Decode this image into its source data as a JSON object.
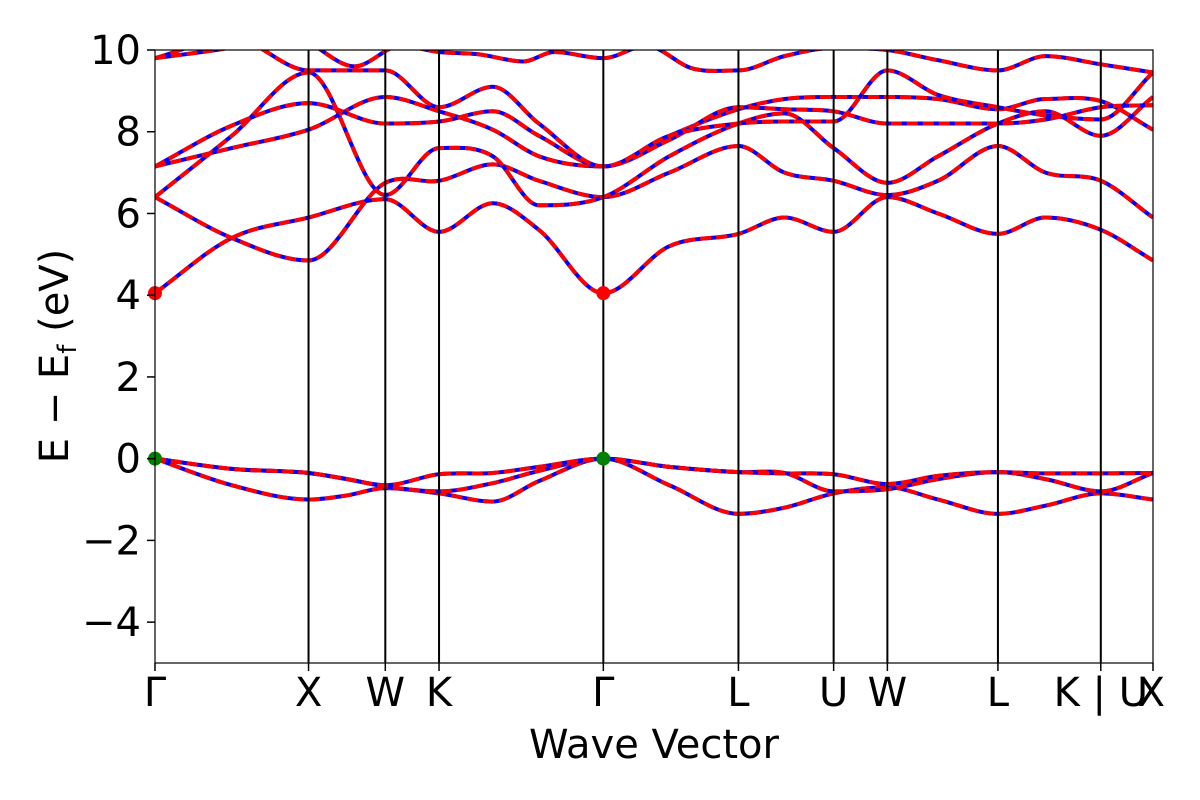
{
  "chart_data": {
    "type": "line",
    "title": "",
    "xlabel": "Wave Vector",
    "ylabel": "E − E",
    "ylabel_sub": "f",
    "ylabel_unit": " (eV)",
    "xlim": [
      0,
      6.5
    ],
    "ylim": [
      -5,
      10
    ],
    "yticks": [
      -4,
      -2,
      0,
      2,
      4,
      6,
      8,
      10
    ],
    "ytick_labels": [
      "−4",
      "−2",
      "0",
      "2",
      "4",
      "6",
      "8",
      "10"
    ],
    "kpoints": [
      {
        "label": "Γ",
        "x": 0.0
      },
      {
        "label": "X",
        "x": 1.0
      },
      {
        "label": "W",
        "x": 1.5
      },
      {
        "label": "K",
        "x": 1.85
      },
      {
        "label": "Γ",
        "x": 2.92
      },
      {
        "label": "L",
        "x": 3.8
      },
      {
        "label": "U",
        "x": 4.42
      },
      {
        "label": "W",
        "x": 4.77
      },
      {
        "label": "L",
        "x": 5.49
      },
      {
        "label": "K | U",
        "x": 6.16
      },
      {
        "label": "X",
        "x": 6.5
      }
    ],
    "line_colors": {
      "primary": "#ff0000",
      "overlay": "#0000ff"
    },
    "marker_colors": {
      "cbm": "#ff0000",
      "vbm": "#008000"
    },
    "markers": [
      {
        "kind": "cbm",
        "x": 0.0,
        "y": 4.05
      },
      {
        "kind": "cbm",
        "x": 2.92,
        "y": 4.05
      },
      {
        "kind": "vbm",
        "x": 0.0,
        "y": 0.0
      },
      {
        "kind": "vbm",
        "x": 2.92,
        "y": 0.0
      }
    ],
    "bands": [
      {
        "x": [
          0.0,
          0.5,
          1.0,
          1.25,
          1.5,
          1.85,
          2.2,
          2.5,
          2.92,
          3.35,
          3.8,
          4.1,
          4.42,
          4.77,
          5.1,
          5.49,
          5.8,
          6.16,
          6.5
        ],
        "y": [
          0.0,
          -0.65,
          -1.0,
          -0.9,
          -0.72,
          -0.85,
          -1.05,
          -0.55,
          0.0,
          -0.65,
          -1.35,
          -1.2,
          -0.85,
          -0.7,
          -1.0,
          -1.35,
          -1.15,
          -0.85,
          -1.0
        ]
      },
      {
        "x": [
          0.0,
          0.5,
          1.0,
          1.25,
          1.5,
          1.85,
          2.2,
          2.5,
          2.92,
          3.35,
          3.8,
          4.1,
          4.42,
          4.77,
          5.1,
          5.49,
          5.8,
          6.16,
          6.5
        ],
        "y": [
          0.0,
          -0.25,
          -0.35,
          -0.5,
          -0.68,
          -0.8,
          -0.6,
          -0.3,
          0.0,
          -0.2,
          -0.33,
          -0.35,
          -0.8,
          -0.75,
          -0.5,
          -0.33,
          -0.5,
          -0.8,
          -0.35
        ]
      },
      {
        "x": [
          0.0,
          0.5,
          1.0,
          1.25,
          1.5,
          1.85,
          2.2,
          2.5,
          2.92,
          3.35,
          3.8,
          4.1,
          4.42,
          4.77,
          5.1,
          5.49,
          5.8,
          6.16,
          6.5
        ],
        "y": [
          0.0,
          -0.25,
          -0.35,
          -0.5,
          -0.65,
          -0.38,
          -0.35,
          -0.2,
          0.0,
          -0.2,
          -0.33,
          -0.36,
          -0.38,
          -0.62,
          -0.42,
          -0.33,
          -0.36,
          -0.36,
          -0.35
        ]
      },
      {
        "x": [
          0.0,
          0.5,
          1.0,
          1.5,
          1.85,
          2.2,
          2.5,
          2.92,
          3.35,
          3.8,
          4.1,
          4.42,
          4.77,
          5.1,
          5.49,
          5.8,
          6.16,
          6.5
        ],
        "y": [
          4.05,
          5.4,
          5.9,
          6.35,
          5.55,
          6.25,
          5.6,
          4.05,
          5.2,
          5.5,
          5.9,
          5.55,
          6.4,
          6.0,
          5.5,
          5.9,
          5.6,
          4.85
        ]
      },
      {
        "x": [
          0.0,
          0.5,
          1.0,
          1.5,
          1.85,
          2.2,
          2.5,
          2.92,
          3.35,
          3.8,
          4.1,
          4.42,
          4.77,
          5.1,
          5.49,
          5.8,
          6.16,
          6.5
        ],
        "y": [
          6.4,
          5.4,
          4.85,
          6.75,
          6.8,
          7.2,
          6.8,
          6.4,
          7.0,
          7.65,
          7.0,
          6.8,
          6.45,
          6.8,
          7.65,
          7.0,
          6.8,
          5.9
        ]
      },
      {
        "x": [
          0.0,
          0.5,
          1.0,
          1.5,
          1.85,
          2.2,
          2.5,
          2.92,
          3.35,
          3.8,
          4.1,
          4.42,
          4.77,
          5.1,
          5.49,
          5.8,
          6.16,
          6.5
        ],
        "y": [
          6.4,
          7.9,
          9.45,
          6.45,
          7.6,
          7.4,
          6.2,
          6.4,
          7.4,
          8.2,
          8.45,
          7.6,
          6.75,
          7.4,
          8.2,
          8.5,
          7.9,
          8.85
        ]
      },
      {
        "x": [
          0.0,
          0.5,
          1.0,
          1.5,
          1.85,
          2.2,
          2.5,
          2.92,
          3.35,
          3.8,
          4.1,
          4.42,
          4.77,
          5.1,
          5.49,
          5.8,
          6.16,
          6.5
        ],
        "y": [
          7.15,
          7.6,
          8.05,
          8.85,
          8.5,
          8.05,
          7.4,
          7.15,
          7.9,
          8.55,
          8.8,
          8.85,
          8.85,
          8.8,
          8.55,
          8.8,
          8.75,
          8.05
        ]
      },
      {
        "x": [
          0.0,
          0.5,
          1.0,
          1.5,
          1.85,
          2.2,
          2.5,
          2.92,
          3.35,
          3.8,
          4.1,
          4.42,
          4.77,
          5.1,
          5.49,
          5.8,
          6.16,
          6.5
        ],
        "y": [
          7.15,
          8.15,
          8.7,
          8.2,
          8.25,
          8.5,
          7.9,
          7.15,
          7.8,
          8.6,
          8.55,
          8.5,
          8.2,
          8.2,
          8.2,
          8.3,
          8.6,
          8.65
        ]
      },
      {
        "x": [
          0.0,
          0.5,
          1.0,
          1.5,
          1.85,
          2.2,
          2.5,
          2.92,
          3.35,
          3.8,
          4.1,
          4.42,
          4.77,
          5.1,
          5.49,
          5.8,
          6.16,
          6.5
        ],
        "y": [
          9.8,
          10.3,
          9.5,
          9.5,
          8.6,
          9.1,
          8.2,
          7.15,
          7.9,
          8.2,
          8.25,
          8.25,
          9.5,
          8.9,
          8.6,
          8.4,
          8.3,
          9.45
        ]
      },
      {
        "x": [
          0.0,
          0.4,
          0.9,
          1.3,
          1.6,
          1.85,
          2.1,
          2.4,
          2.6,
          2.92,
          3.2,
          3.5,
          3.8,
          4.1,
          4.42,
          4.77,
          5.1,
          5.49,
          5.8,
          6.16,
          6.5
        ],
        "y": [
          9.8,
          10.0,
          10.3,
          9.6,
          10.1,
          9.95,
          9.9,
          9.72,
          9.95,
          9.8,
          10.1,
          9.55,
          9.5,
          9.85,
          10.05,
          10.0,
          9.75,
          9.5,
          9.85,
          9.65,
          9.45
        ]
      }
    ]
  }
}
